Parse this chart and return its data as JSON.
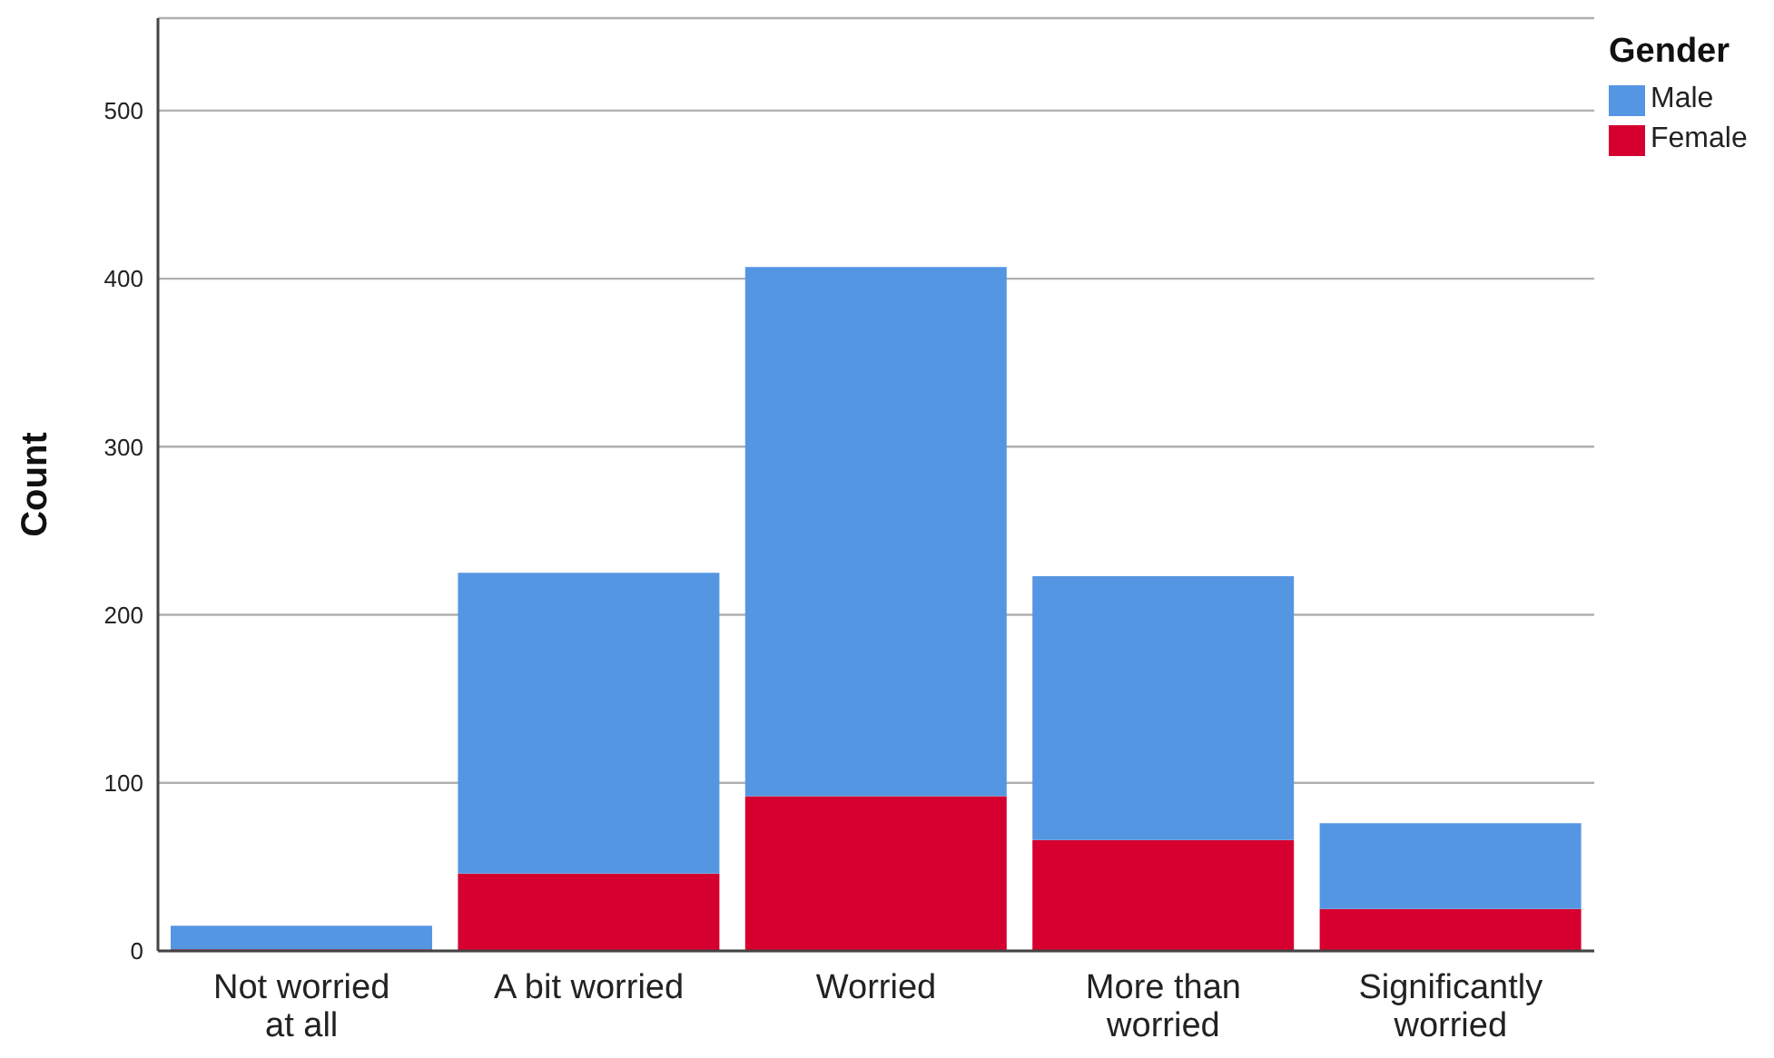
{
  "chart_data": {
    "type": "bar",
    "stacked": true,
    "ylabel": "Count",
    "legend_title": "Gender",
    "legend": "top right",
    "grid": "y",
    "categories": [
      "Not worried at all",
      "A bit worried",
      "Worried",
      "More than worried",
      "Significantly worried"
    ],
    "series": [
      {
        "name": "Female",
        "color": "#d5002f",
        "values": [
          1,
          46,
          92,
          66,
          25
        ]
      },
      {
        "name": "Male",
        "color": "#5596e3",
        "values": [
          14,
          179,
          315,
          157,
          51
        ]
      }
    ],
    "ylim": [
      0,
      555
    ],
    "yticks": [
      0,
      100,
      200,
      300,
      400,
      500
    ]
  }
}
